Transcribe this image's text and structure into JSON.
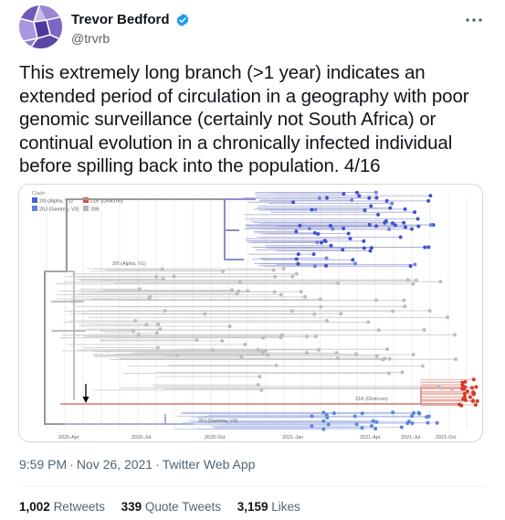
{
  "author": {
    "name": "Trevor Bedford",
    "handle": "@trvrb",
    "verified_color": "#1d9bf0"
  },
  "tweet": {
    "text": "This extremely long branch (>1 year) indicates an extended period of circulation in a geography with poor genomic surveillance (certainly not South Africa) or continual evolution in a chronically infected individual before spilling back into the population. 4/16"
  },
  "media": {
    "legend_title": "Clade",
    "legend": [
      {
        "label": "20I (Alpha, V1)",
        "color": "#4a5fd6"
      },
      {
        "label": "21K (Omicron)",
        "color": "#d94b3c"
      },
      {
        "label": "20J (Gamma, V3)",
        "color": "#5a86dc"
      },
      {
        "label": "20B",
        "color": "#b5b5b5"
      }
    ],
    "clade_labels": {
      "alpha": "20I (Alpha, V1)",
      "omicron": "21K (Omicron)",
      "gamma": "20J (Gamma, V3)"
    },
    "axis_ticks": [
      "2020-Apr",
      "2020-Jul",
      "2020-Oct",
      "2021-Jan",
      "2021-Apr",
      "2021-Jul",
      "2021-Oct"
    ]
  },
  "meta": {
    "time": "9:59 PM",
    "date": "Nov 26, 2021",
    "source": "Twitter Web App",
    "separator": "·"
  },
  "stats": {
    "retweets_count": "1,002",
    "retweets_label": "Retweets",
    "quotes_count": "339",
    "quotes_label": "Quote Tweets",
    "likes_count": "3,159",
    "likes_label": "Likes"
  }
}
